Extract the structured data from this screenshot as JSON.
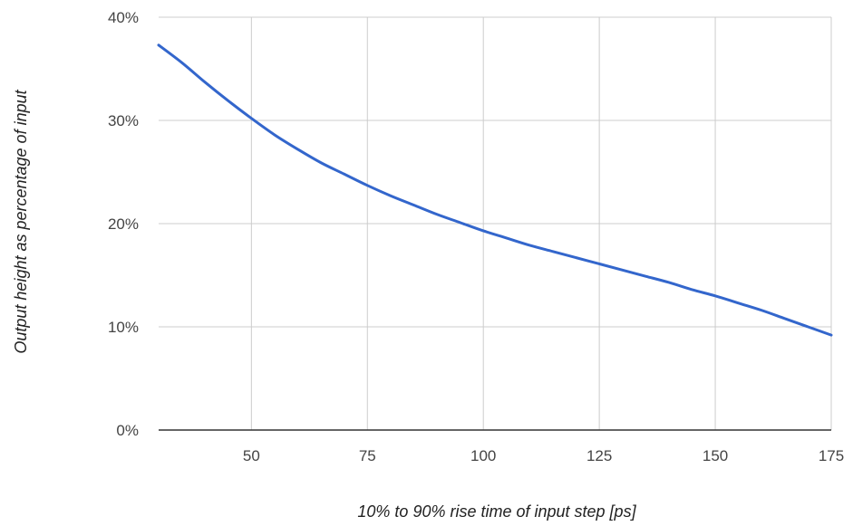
{
  "chart_data": {
    "type": "line",
    "title": "",
    "xlabel": "10% to 90% rise time of input step [ps]",
    "ylabel": "Output height as percentage of input",
    "xlim": [
      30,
      175
    ],
    "ylim": [
      0,
      40
    ],
    "x_ticks": [
      50,
      75,
      100,
      125,
      150,
      175
    ],
    "x_tick_labels": [
      "50",
      "75",
      "100",
      "125",
      "150",
      "175"
    ],
    "y_ticks": [
      0,
      10,
      20,
      30,
      40
    ],
    "y_tick_labels": [
      "0%",
      "10%",
      "20%",
      "30%",
      "40%"
    ],
    "grid": true,
    "legend": "none",
    "series": [
      {
        "color": "#3366cc",
        "x": [
          30,
          35,
          40,
          45,
          50,
          55,
          60,
          65,
          70,
          75,
          80,
          85,
          90,
          95,
          100,
          105,
          110,
          115,
          120,
          125,
          130,
          135,
          140,
          145,
          150,
          155,
          160,
          165,
          170,
          175
        ],
        "y": [
          37.3,
          35.6,
          33.7,
          31.9,
          30.2,
          28.6,
          27.2,
          25.9,
          24.8,
          23.7,
          22.7,
          21.8,
          20.9,
          20.1,
          19.3,
          18.6,
          17.9,
          17.3,
          16.7,
          16.1,
          15.5,
          14.9,
          14.3,
          13.6,
          13.0,
          12.3,
          11.6,
          10.8,
          10.0,
          9.2
        ]
      }
    ]
  }
}
